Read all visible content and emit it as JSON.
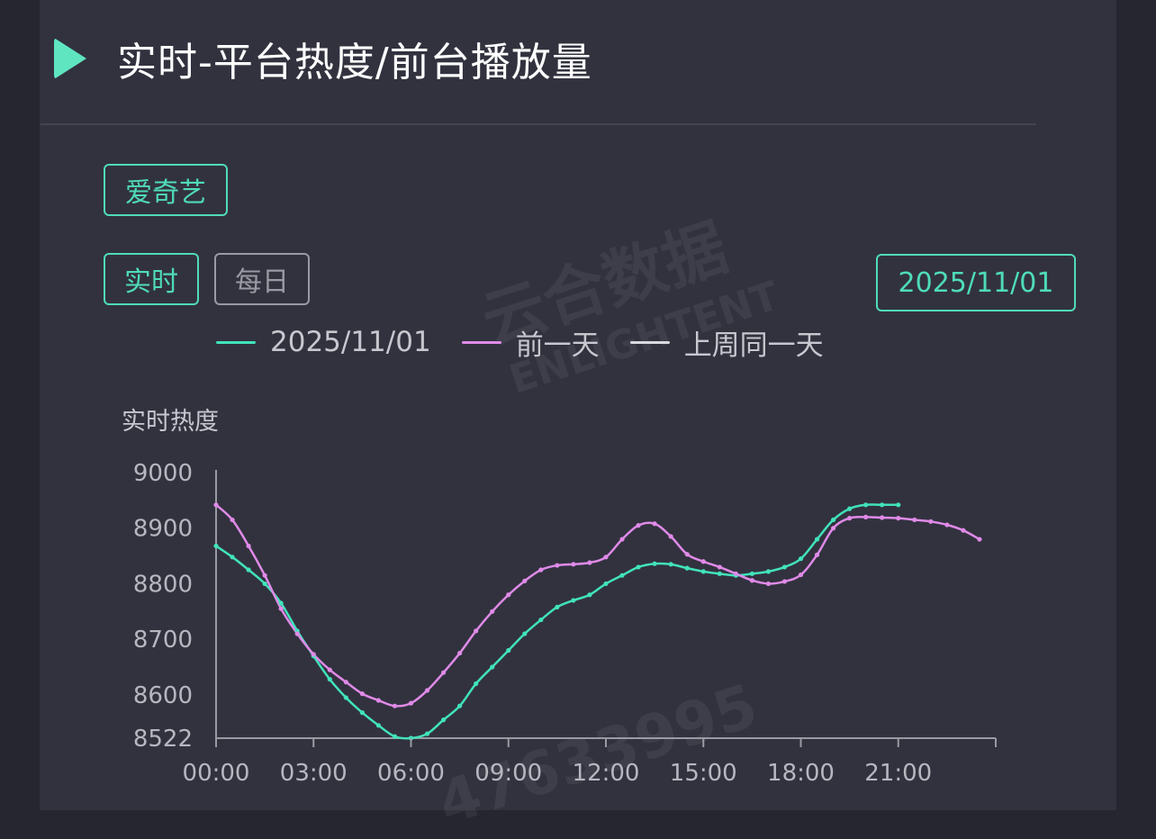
{
  "header": {
    "title": "实时-平台热度/前台播放量"
  },
  "platform": {
    "label": "爱奇艺"
  },
  "mode_tabs": [
    {
      "label": "实时",
      "active": true
    },
    {
      "label": "每日",
      "active": false
    }
  ],
  "date_picker": {
    "label": "2025/11/01"
  },
  "colors": {
    "accent": "#4fdcb8",
    "series_today": "#41e3bb",
    "series_prev": "#e08ae8",
    "series_week": "#d9d9df",
    "background": "#32323f"
  },
  "watermark": {
    "brand": "云合数据",
    "brand_en": "ENLIGHTENT",
    "id": "47633995"
  },
  "chart_data": {
    "type": "line",
    "ylabel": "实时热度",
    "y_ticks": [
      "9000",
      "8900",
      "8800",
      "8700",
      "8600",
      "8522"
    ],
    "x_ticks": [
      "00:00",
      "03:00",
      "06:00",
      "09:00",
      "12:00",
      "15:00",
      "18:00",
      "21:00"
    ],
    "ylim": [
      8522,
      9000
    ],
    "legend_position": "top-center",
    "series": [
      {
        "name": "2025/11/01",
        "color": "#41e3bb",
        "x": [
          "00:00",
          "00:30",
          "01:00",
          "01:30",
          "02:00",
          "02:30",
          "03:00",
          "03:30",
          "04:00",
          "04:30",
          "05:00",
          "05:30",
          "06:00",
          "06:30",
          "07:00",
          "07:30",
          "08:00",
          "08:30",
          "09:00",
          "09:30",
          "10:00",
          "10:30",
          "11:00",
          "11:30",
          "12:00",
          "12:30",
          "13:00",
          "13:30",
          "14:00",
          "14:30",
          "15:00",
          "15:30",
          "16:00",
          "16:30",
          "17:00",
          "17:30",
          "18:00",
          "18:30",
          "19:00",
          "19:30",
          "20:00",
          "20:30",
          "21:00"
        ],
        "values": [
          8868,
          8848,
          8825,
          8800,
          8765,
          8715,
          8670,
          8628,
          8595,
          8568,
          8545,
          8525,
          8522,
          8530,
          8555,
          8580,
          8620,
          8650,
          8680,
          8710,
          8735,
          8758,
          8770,
          8780,
          8800,
          8815,
          8830,
          8836,
          8835,
          8828,
          8822,
          8818,
          8815,
          8818,
          8822,
          8830,
          8845,
          8880,
          8915,
          8935,
          8942,
          8942,
          8942
        ]
      },
      {
        "name": "前一天",
        "color": "#e08ae8",
        "x": [
          "00:00",
          "00:30",
          "01:00",
          "01:30",
          "02:00",
          "02:30",
          "03:00",
          "03:30",
          "04:00",
          "04:30",
          "05:00",
          "05:30",
          "06:00",
          "06:30",
          "07:00",
          "07:30",
          "08:00",
          "08:30",
          "09:00",
          "09:30",
          "10:00",
          "10:30",
          "11:00",
          "11:30",
          "12:00",
          "12:30",
          "13:00",
          "13:30",
          "14:00",
          "14:30",
          "15:00",
          "15:30",
          "16:00",
          "16:30",
          "17:00",
          "17:30",
          "18:00",
          "18:30",
          "19:00",
          "19:30",
          "20:00",
          "20:30",
          "21:00",
          "21:30",
          "22:00",
          "22:30",
          "23:00",
          "23:30"
        ],
        "values": [
          8942,
          8915,
          8868,
          8815,
          8755,
          8710,
          8673,
          8645,
          8623,
          8602,
          8590,
          8580,
          8585,
          8608,
          8640,
          8675,
          8715,
          8750,
          8780,
          8805,
          8825,
          8833,
          8835,
          8838,
          8848,
          8880,
          8905,
          8908,
          8885,
          8853,
          8840,
          8830,
          8818,
          8806,
          8800,
          8804,
          8816,
          8852,
          8900,
          8918,
          8920,
          8919,
          8918,
          8915,
          8912,
          8906,
          8896,
          8880
        ]
      },
      {
        "name": "上周同一天",
        "color": "#d9d9df",
        "x": [],
        "values": []
      }
    ]
  }
}
